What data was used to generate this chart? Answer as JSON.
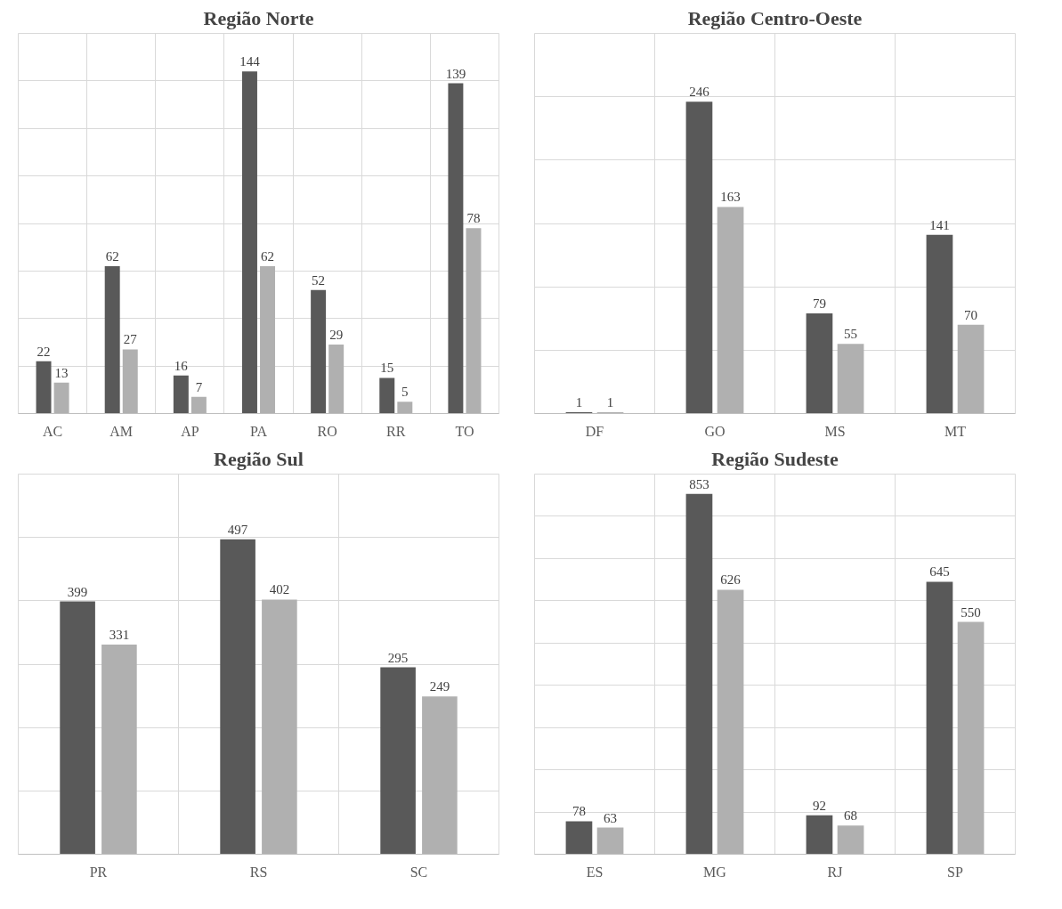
{
  "chart_data": [
    {
      "type": "bar",
      "title": "Região Norte",
      "categories": [
        "AC",
        "AM",
        "AP",
        "PA",
        "RO",
        "RR",
        "TO"
      ],
      "series": [
        {
          "color": "#595959",
          "values": [
            22,
            62,
            16,
            144,
            52,
            15,
            139
          ]
        },
        {
          "color": "#b0b0b0",
          "values": [
            13,
            27,
            7,
            62,
            29,
            5,
            78
          ]
        }
      ],
      "ylim": [
        0,
        160
      ],
      "yticks": [
        {
          "value": 0,
          "label": null
        },
        {
          "value": 20,
          "label": null
        },
        {
          "value": 40,
          "label": null
        },
        {
          "value": 60,
          "label": null
        },
        {
          "value": 80,
          "label": null
        },
        {
          "value": 100,
          "label": null
        },
        {
          "value": 120,
          "label": null
        },
        {
          "value": 140,
          "label": null
        },
        {
          "value": 160,
          "label": null
        }
      ],
      "tick_labels": "x",
      "grid": true,
      "data_labels": true
    },
    {
      "type": "bar",
      "title": "Região Centro-Oeste",
      "categories": [
        "DF",
        "GO",
        "MS",
        "MT"
      ],
      "series": [
        {
          "color": "#595959",
          "values": [
            1,
            246,
            79,
            141
          ]
        },
        {
          "color": "#b0b0b0",
          "values": [
            1,
            163,
            55,
            70
          ]
        }
      ],
      "ylim": [
        0,
        300
      ],
      "yticks": [
        {
          "value": 0,
          "label": null
        },
        {
          "value": 50,
          "label": null
        },
        {
          "value": 100,
          "label": null
        },
        {
          "value": 150,
          "label": null
        },
        {
          "value": 200,
          "label": null
        },
        {
          "value": 250,
          "label": null
        },
        {
          "value": 300,
          "label": null
        }
      ],
      "tick_labels": "x",
      "grid": true,
      "data_labels": true
    },
    {
      "type": "bar",
      "title": "Região Sul",
      "categories": [
        "PR",
        "RS",
        "SC"
      ],
      "series": [
        {
          "color": "#595959",
          "values": [
            399,
            497,
            295
          ]
        },
        {
          "color": "#b0b0b0",
          "values": [
            331,
            402,
            249
          ]
        }
      ],
      "ylim": [
        0,
        600
      ],
      "yticks": [
        {
          "value": 0,
          "label": null
        },
        {
          "value": 100,
          "label": null
        },
        {
          "value": 200,
          "label": null
        },
        {
          "value": 300,
          "label": null
        },
        {
          "value": 400,
          "label": null
        },
        {
          "value": 500,
          "label": null
        },
        {
          "value": 600,
          "label": null
        }
      ],
      "tick_labels": "x",
      "grid": true,
      "data_labels": true
    },
    {
      "type": "bar",
      "title": "Região Sudeste",
      "categories": [
        "ES",
        "MG",
        "RJ",
        "SP"
      ],
      "series": [
        {
          "color": "#595959",
          "values": [
            78,
            853,
            92,
            645
          ]
        },
        {
          "color": "#b0b0b0",
          "values": [
            63,
            626,
            68,
            550
          ]
        }
      ],
      "ylim": [
        0,
        900
      ],
      "yticks": [
        {
          "value": 0,
          "label": null
        },
        {
          "value": 100,
          "label": null
        },
        {
          "value": 200,
          "label": null
        },
        {
          "value": 300,
          "label": null
        },
        {
          "value": 400,
          "label": null
        },
        {
          "value": 500,
          "label": null
        },
        {
          "value": 600,
          "label": null
        },
        {
          "value": 700,
          "label": null
        },
        {
          "value": 800,
          "label": null
        },
        {
          "value": 900,
          "label": null
        }
      ],
      "tick_labels": "x",
      "grid": true,
      "data_labels": true
    }
  ]
}
